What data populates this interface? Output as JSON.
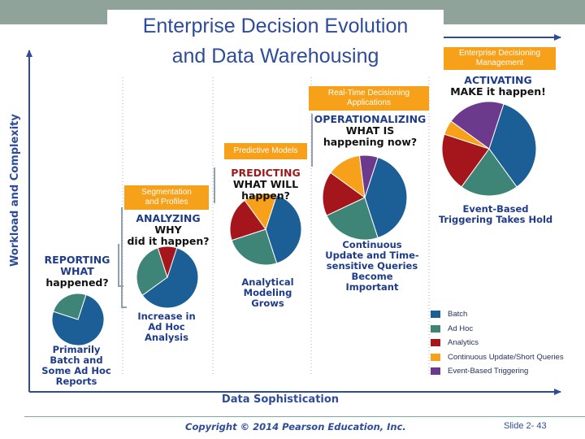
{
  "slide": {
    "title_line1": "Enterprise Decision Evolution",
    "title_line2": "and Data Warehousing",
    "copyright": "Copyright © 2014 Pearson Education, Inc.",
    "slide_number": "Slide 2- 43"
  },
  "axes": {
    "y_label": "Workload and Complexity",
    "x_label": "Data Sophistication"
  },
  "colors": {
    "batch": "#1b5f96",
    "ad_hoc": "#3f8577",
    "analytics": "#a5161c",
    "continuous": "#f7a11a",
    "event_based": "#6b3a8c",
    "axis": "#2e4c9a",
    "box": "#f7a11a",
    "stage_heading": "#1f3c88",
    "stage_accent": "#9c1a1a"
  },
  "stages": [
    {
      "name": "reporting",
      "line1": "REPORTING",
      "line2": "WHAT",
      "line3": "happened?",
      "caption": [
        "Primarily",
        "Batch and",
        "Some Ad Hoc",
        "Reports"
      ],
      "pie": {
        "batch": 75,
        "ad_hoc": 25,
        "analytics": 0,
        "continuous": 0,
        "event_based": 0
      }
    },
    {
      "name": "analyzing",
      "line1": "ANALYZING",
      "line2": "WHY",
      "line3": "did it happen?",
      "box": [
        "Segmentation",
        "and Profiles"
      ],
      "caption": [
        "Increase in",
        "Ad Hoc",
        "Analysis"
      ],
      "pie": {
        "batch": 60,
        "ad_hoc": 30,
        "analytics": 10,
        "continuous": 0,
        "event_based": 0
      }
    },
    {
      "name": "predicting",
      "line1": "PREDICTING",
      "line2": "WHAT WILL",
      "line3": "happen?",
      "box": [
        "Predictive Models"
      ],
      "caption": [
        "Analytical",
        "Modeling",
        "Grows"
      ],
      "pie": {
        "batch": 40,
        "ad_hoc": 25,
        "analytics": 20,
        "continuous": 15,
        "event_based": 0
      }
    },
    {
      "name": "operationalizing",
      "line1": "OPERATIONALIZING",
      "line2": "WHAT IS",
      "line3": "happening now?",
      "box": [
        "Real-Time Decisioning",
        "Applications"
      ],
      "caption": [
        "Continuous",
        "Update and Time-",
        "sensitive Queries",
        "Become",
        "Important"
      ],
      "pie": {
        "batch": 40,
        "ad_hoc": 23,
        "analytics": 17,
        "continuous": 13,
        "event_based": 7
      }
    },
    {
      "name": "activating",
      "line1": "ACTIVATING",
      "line2": "MAKE it happen!",
      "box": [
        "Enterprise Decisioning",
        "Management"
      ],
      "caption": [
        "Event-Based",
        "Triggering Takes Hold"
      ],
      "pie": {
        "batch": 35,
        "ad_hoc": 20,
        "analytics": 20,
        "continuous": 5,
        "event_based": 20
      }
    }
  ],
  "legend": [
    {
      "label": "Batch",
      "color": "#1b5f96"
    },
    {
      "label": "Ad Hoc",
      "color": "#3f8577"
    },
    {
      "label": "Analytics",
      "color": "#a5161c"
    },
    {
      "label": "Continuous Update/Short Queries",
      "color": "#f7a11a"
    },
    {
      "label": "Event-Based Triggering",
      "color": "#6b3a8c"
    }
  ]
}
